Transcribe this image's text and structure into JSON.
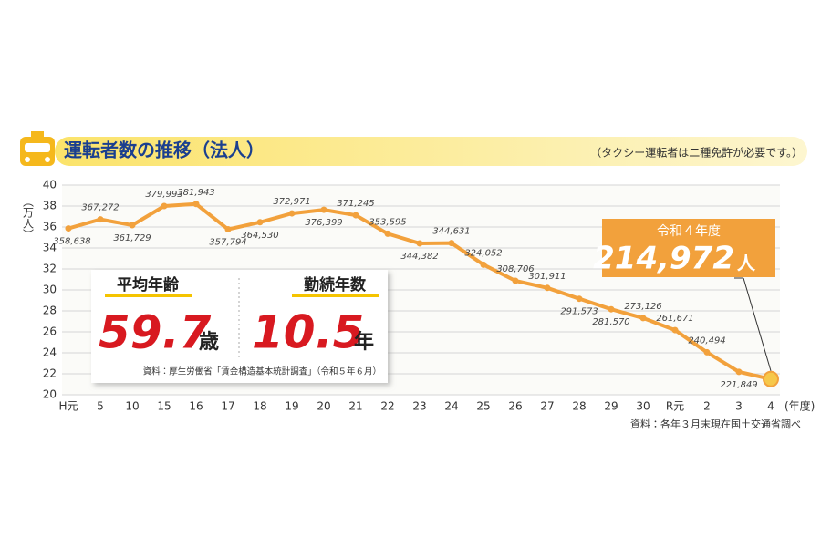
{
  "header": {
    "title": "運転者数の推移（法人）",
    "note": "（タクシー運転者は二種免許が必要です。）"
  },
  "chart_data": {
    "type": "line",
    "y_label": "（万人）",
    "x_unit": "(年度)",
    "categories": [
      "H元",
      "5",
      "10",
      "15",
      "16",
      "17",
      "18",
      "19",
      "20",
      "21",
      "22",
      "23",
      "24",
      "25",
      "26",
      "27",
      "28",
      "29",
      "30",
      "R元",
      "2",
      "3",
      "4"
    ],
    "series": [
      {
        "name": "運転者数",
        "color": "#f2a13c",
        "values": [
          35.8638,
          36.7272,
          36.1729,
          37.9993,
          38.1943,
          35.7794,
          36.453,
          37.2971,
          37.6399,
          37.1245,
          35.3595,
          34.4382,
          34.4631,
          32.4052,
          30.8706,
          30.1911,
          29.1573,
          28.157,
          27.3126,
          26.1671,
          24.0494,
          22.1849,
          21.4972
        ],
        "value_labels": [
          "358,638",
          "367,272",
          "361,729",
          "379,993",
          "381,943",
          "357,794",
          "364,530",
          "372,971",
          "376,399",
          "371,245",
          "353,595",
          "344,382",
          "344,631",
          "324,052",
          "308,706",
          "301,911",
          "291,573",
          "281,570",
          "273,126",
          "261,671",
          "240,494",
          "221,849",
          "214,972"
        ]
      }
    ],
    "ylim": [
      20,
      40
    ],
    "yticks": [
      20,
      22,
      24,
      26,
      28,
      30,
      32,
      34,
      36,
      38,
      40
    ],
    "grid": true,
    "callout": {
      "title": "令和４年度",
      "unit": "人"
    },
    "source": "資料：各年３月末現在国土交通省調べ"
  },
  "stats": {
    "age_label": "平均年齢",
    "age_value": "59.7",
    "age_unit": "歳",
    "tenure_label": "勤続年数",
    "tenure_value": "10.5",
    "tenure_unit": "年",
    "source": "資料：厚生労働省「賃金構造基本統計調査」（令和５年６月）"
  }
}
